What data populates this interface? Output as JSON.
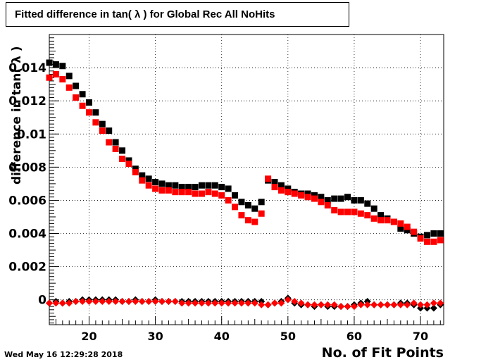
{
  "chart_data": {
    "type": "scatter",
    "title": "Fitted difference in tan( λ ) for Global Rec All NoHits",
    "xlabel": "No. of Fit Points",
    "ylabel": "difference in tan( λ )",
    "timestamp": "Wed May 16 12:29:28 2018",
    "xlim": [
      14,
      73.5
    ],
    "ylim": [
      -0.0015,
      0.016
    ],
    "x_ticks": [
      20,
      30,
      40,
      50,
      60,
      70
    ],
    "y_ticks": [
      0,
      0.002,
      0.004,
      0.006,
      0.008,
      0.01,
      0.012,
      0.014
    ],
    "y_tick_labels": [
      "0",
      "0.002",
      "0.004",
      "0.006",
      "0.008",
      "0.01",
      "0.012",
      "0.014"
    ],
    "grid": true,
    "series": [
      {
        "marker": "square",
        "color": "#000000",
        "x": [
          14,
          15,
          16,
          17,
          18,
          19,
          20,
          21,
          22,
          23,
          24,
          25,
          26,
          27,
          28,
          29,
          30,
          31,
          32,
          33,
          34,
          35,
          36,
          37,
          38,
          39,
          40,
          41,
          42,
          43,
          44,
          45,
          46,
          47,
          48,
          49,
          50,
          51,
          52,
          53,
          54,
          55,
          56,
          57,
          58,
          59,
          60,
          61,
          62,
          63,
          64,
          65,
          66,
          67,
          68,
          69,
          70,
          71,
          72,
          73
        ],
        "y": [
          0.0143,
          0.0142,
          0.0141,
          0.0135,
          0.0129,
          0.0124,
          0.0119,
          0.0113,
          0.0106,
          0.0102,
          0.0095,
          0.009,
          0.0084,
          0.0079,
          0.0075,
          0.0073,
          0.0071,
          0.007,
          0.0069,
          0.0069,
          0.0068,
          0.0068,
          0.0068,
          0.0069,
          0.0069,
          0.0069,
          0.0068,
          0.0067,
          0.0063,
          0.0059,
          0.0057,
          0.0055,
          0.0059,
          0.0072,
          0.0071,
          0.0069,
          0.0067,
          0.0065,
          0.0064,
          0.0064,
          0.0063,
          0.0062,
          0.006,
          0.0061,
          0.0061,
          0.0062,
          0.006,
          0.006,
          0.0058,
          0.0055,
          0.0051,
          0.0049,
          0.0047,
          0.0043,
          0.0042,
          0.004,
          0.0038,
          0.0039,
          0.004,
          0.004
        ]
      },
      {
        "marker": "square",
        "color": "#ff0000",
        "x": [
          14,
          15,
          16,
          17,
          18,
          19,
          20,
          21,
          22,
          23,
          24,
          25,
          26,
          27,
          28,
          29,
          30,
          31,
          32,
          33,
          34,
          35,
          36,
          37,
          38,
          39,
          40,
          41,
          42,
          43,
          44,
          45,
          46,
          47,
          48,
          49,
          50,
          51,
          52,
          53,
          54,
          55,
          56,
          57,
          58,
          59,
          60,
          61,
          62,
          63,
          64,
          65,
          66,
          67,
          68,
          69,
          70,
          71,
          72,
          73
        ],
        "y": [
          0.0134,
          0.0136,
          0.0133,
          0.0128,
          0.0122,
          0.0117,
          0.0113,
          0.0107,
          0.0102,
          0.0095,
          0.0091,
          0.0085,
          0.0082,
          0.0077,
          0.0072,
          0.0069,
          0.0067,
          0.0066,
          0.0066,
          0.0065,
          0.0065,
          0.0065,
          0.0064,
          0.0064,
          0.0065,
          0.0064,
          0.0063,
          0.006,
          0.0056,
          0.0051,
          0.0048,
          0.0047,
          0.0052,
          0.0073,
          0.0068,
          0.0066,
          0.0065,
          0.0064,
          0.0063,
          0.0062,
          0.0061,
          0.0059,
          0.0057,
          0.0054,
          0.0053,
          0.0053,
          0.0053,
          0.0052,
          0.0051,
          0.0049,
          0.0048,
          0.0048,
          0.0047,
          0.0046,
          0.0044,
          0.0041,
          0.0037,
          0.0035,
          0.0035,
          0.0036
        ]
      },
      {
        "marker": "diamond",
        "color": "#000000",
        "x": [
          14,
          15,
          16,
          17,
          18,
          19,
          20,
          21,
          22,
          23,
          24,
          25,
          26,
          27,
          28,
          29,
          30,
          31,
          32,
          33,
          34,
          35,
          36,
          37,
          38,
          39,
          40,
          41,
          42,
          43,
          44,
          45,
          46,
          47,
          48,
          49,
          50,
          51,
          52,
          53,
          54,
          55,
          56,
          57,
          58,
          59,
          60,
          61,
          62,
          63,
          64,
          65,
          66,
          67,
          68,
          69,
          70,
          71,
          72,
          73
        ],
        "y": [
          -0.0002,
          -0.0001,
          -0.0002,
          -0.0001,
          -0.0001,
          0.0,
          0.0,
          0.0,
          0.0,
          0.0,
          0.0,
          -0.0001,
          -0.0001,
          0.0,
          -0.0001,
          -0.0001,
          0.0,
          -0.0001,
          -0.0001,
          -0.0001,
          -0.0001,
          -0.0001,
          -0.0001,
          -0.0001,
          -0.0001,
          -0.0001,
          -0.0001,
          -0.0001,
          -0.0001,
          -0.0001,
          -0.0001,
          -0.0001,
          -0.0001,
          -0.0003,
          -0.0002,
          -0.0001,
          0.0001,
          -0.0002,
          -0.0003,
          -0.0003,
          -0.0004,
          -0.0003,
          -0.0004,
          -0.0004,
          -0.0004,
          -0.0004,
          -0.0003,
          -0.0002,
          -0.0001,
          -0.0003,
          -0.0003,
          -0.0003,
          -0.0003,
          -0.0002,
          -0.0002,
          -0.0003,
          -0.0005,
          -0.0005,
          -0.0005,
          -0.0003
        ]
      },
      {
        "marker": "diamond",
        "color": "#ff0000",
        "x": [
          14,
          15,
          16,
          17,
          18,
          19,
          20,
          21,
          22,
          23,
          24,
          25,
          26,
          27,
          28,
          29,
          30,
          31,
          32,
          33,
          34,
          35,
          36,
          37,
          38,
          39,
          40,
          41,
          42,
          43,
          44,
          45,
          46,
          47,
          48,
          49,
          50,
          51,
          52,
          53,
          54,
          55,
          56,
          57,
          58,
          59,
          60,
          61,
          62,
          63,
          64,
          65,
          66,
          67,
          68,
          69,
          70,
          71,
          72,
          73
        ],
        "y": [
          -0.0002,
          -0.0002,
          -0.0002,
          -0.0002,
          -0.0001,
          -0.0001,
          -0.0001,
          -0.0001,
          -0.0001,
          -0.0001,
          -0.0001,
          -0.0001,
          -0.0001,
          -0.0001,
          -0.0001,
          -0.0001,
          -0.0001,
          -0.0001,
          -0.0001,
          -0.0001,
          -0.0002,
          -0.0002,
          -0.0002,
          -0.0002,
          -0.0002,
          -0.0002,
          -0.0002,
          -0.0002,
          -0.0002,
          -0.0002,
          -0.0002,
          -0.0002,
          -0.0003,
          -0.0003,
          -0.0002,
          -0.0002,
          0.0,
          -0.0001,
          -0.0002,
          -0.0003,
          -0.0003,
          -0.0003,
          -0.0003,
          -0.0003,
          -0.0004,
          -0.0004,
          -0.0004,
          -0.0003,
          -0.0003,
          -0.0003,
          -0.0003,
          -0.0003,
          -0.0003,
          -0.0003,
          -0.0003,
          -0.0002,
          -0.0003,
          -0.0003,
          -0.0002,
          -0.0002
        ]
      }
    ]
  }
}
